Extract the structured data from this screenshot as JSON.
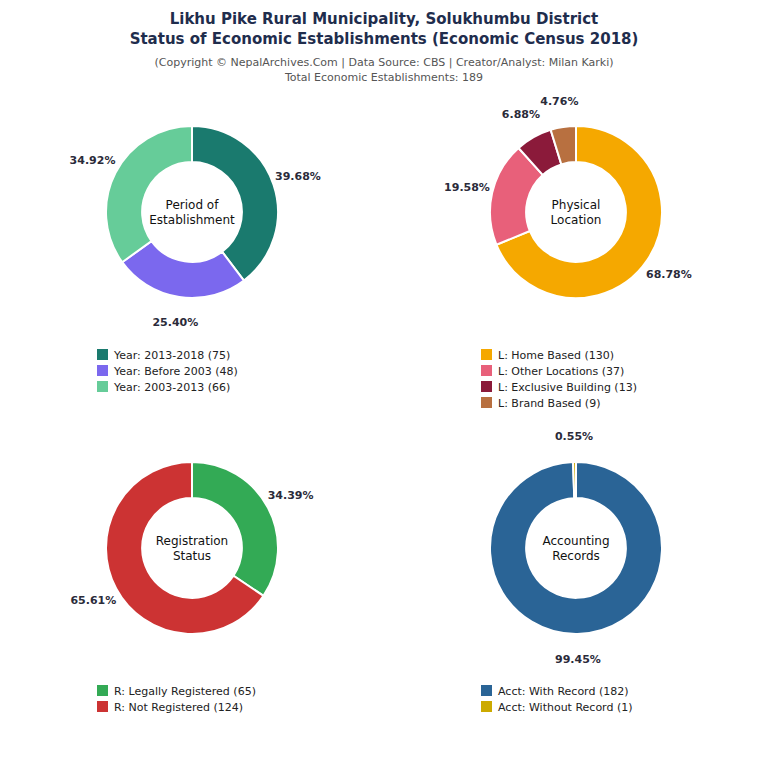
{
  "title": [
    "Likhu Pike Rural Municipality, Solukhumbu District",
    "Status of Economic Establishments (Economic Census 2018)"
  ],
  "subtitle": [
    "(Copyright © NepalArchives.Com | Data Source: CBS | Creator/Analyst: Milan Karki)",
    "Total Economic Establishments: 189"
  ],
  "chart_data": [
    {
      "type": "pie",
      "title": "Period of\nEstablishment",
      "categories": [
        "Year: 2013-2018 (75)",
        "Year: Before 2003 (48)",
        "Year: 2003-2013 (66)"
      ],
      "values": [
        39.68,
        25.4,
        34.92
      ],
      "value_labels": [
        "39.68%",
        "25.40%",
        "34.92%"
      ],
      "colors": [
        "#1a7a6e",
        "#7b68ee",
        "#66cc99"
      ],
      "data_labels": true,
      "legend": "bottom"
    },
    {
      "type": "pie",
      "title": "Physical\nLocation",
      "categories": [
        "L: Home Based (130)",
        "L: Other Locations (37)",
        "L: Exclusive Building (13)",
        "L: Brand Based (9)"
      ],
      "values": [
        68.78,
        19.58,
        6.88,
        4.76
      ],
      "value_labels": [
        "68.78%",
        "19.58%",
        "6.88%",
        "4.76%"
      ],
      "colors": [
        "#f5a800",
        "#e8607a",
        "#8b1a3a",
        "#b87040"
      ],
      "data_labels": true,
      "legend": "bottom"
    },
    {
      "type": "pie",
      "title": "Registration\nStatus",
      "categories": [
        "R: Legally Registered (65)",
        "R: Not Registered (124)"
      ],
      "values": [
        34.39,
        65.61
      ],
      "value_labels": [
        "34.39%",
        "65.61%"
      ],
      "colors": [
        "#33aa55",
        "#cc3333"
      ],
      "data_labels": true,
      "legend": "bottom"
    },
    {
      "type": "pie",
      "title": "Accounting\nRecords",
      "categories": [
        "Acct: With Record (182)",
        "Acct: Without Record (1)"
      ],
      "values": [
        99.45,
        0.55
      ],
      "value_labels": [
        "99.45%",
        "0.55%"
      ],
      "colors": [
        "#2a6496",
        "#ccaa00"
      ],
      "data_labels": true,
      "legend": "bottom"
    }
  ]
}
